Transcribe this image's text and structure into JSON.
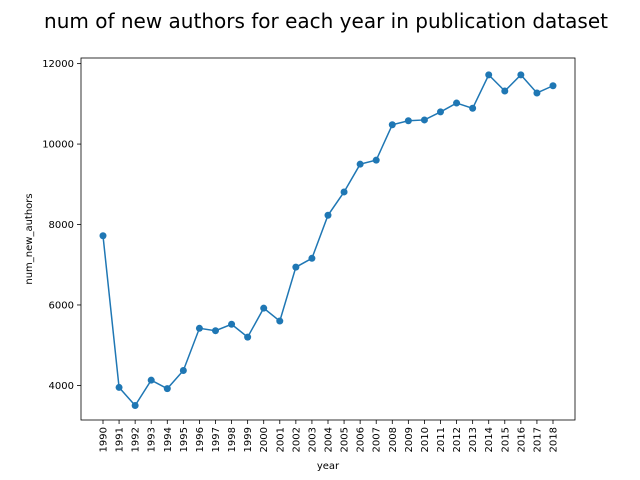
{
  "chart_data": {
    "type": "line",
    "title": "num of new authors for each year in publication dataset",
    "xlabel": "year",
    "ylabel": "num_new_authors",
    "x": [
      "1990",
      "1991",
      "1992",
      "1993",
      "1994",
      "1995",
      "1996",
      "1997",
      "1998",
      "1999",
      "2000",
      "2001",
      "2002",
      "2003",
      "2004",
      "2005",
      "2006",
      "2007",
      "2008",
      "2009",
      "2010",
      "2011",
      "2012",
      "2013",
      "2014",
      "2015",
      "2016",
      "2017",
      "2018"
    ],
    "series": [
      {
        "values": [
          7720,
          3950,
          3500,
          4130,
          3920,
          4370,
          5420,
          5360,
          5520,
          5200,
          5920,
          5600,
          6940,
          7160,
          8230,
          8810,
          9500,
          9600,
          10480,
          10580,
          10600,
          10800,
          11020,
          10890,
          11720,
          11320,
          11720,
          11270,
          11450
        ],
        "color": "#1f77b4"
      }
    ],
    "yticks": [
      4000,
      6000,
      8000,
      10000,
      12000
    ],
    "ylim": [
      3140,
      12140
    ],
    "grid": false,
    "x_tick_rotation": "vertical"
  }
}
